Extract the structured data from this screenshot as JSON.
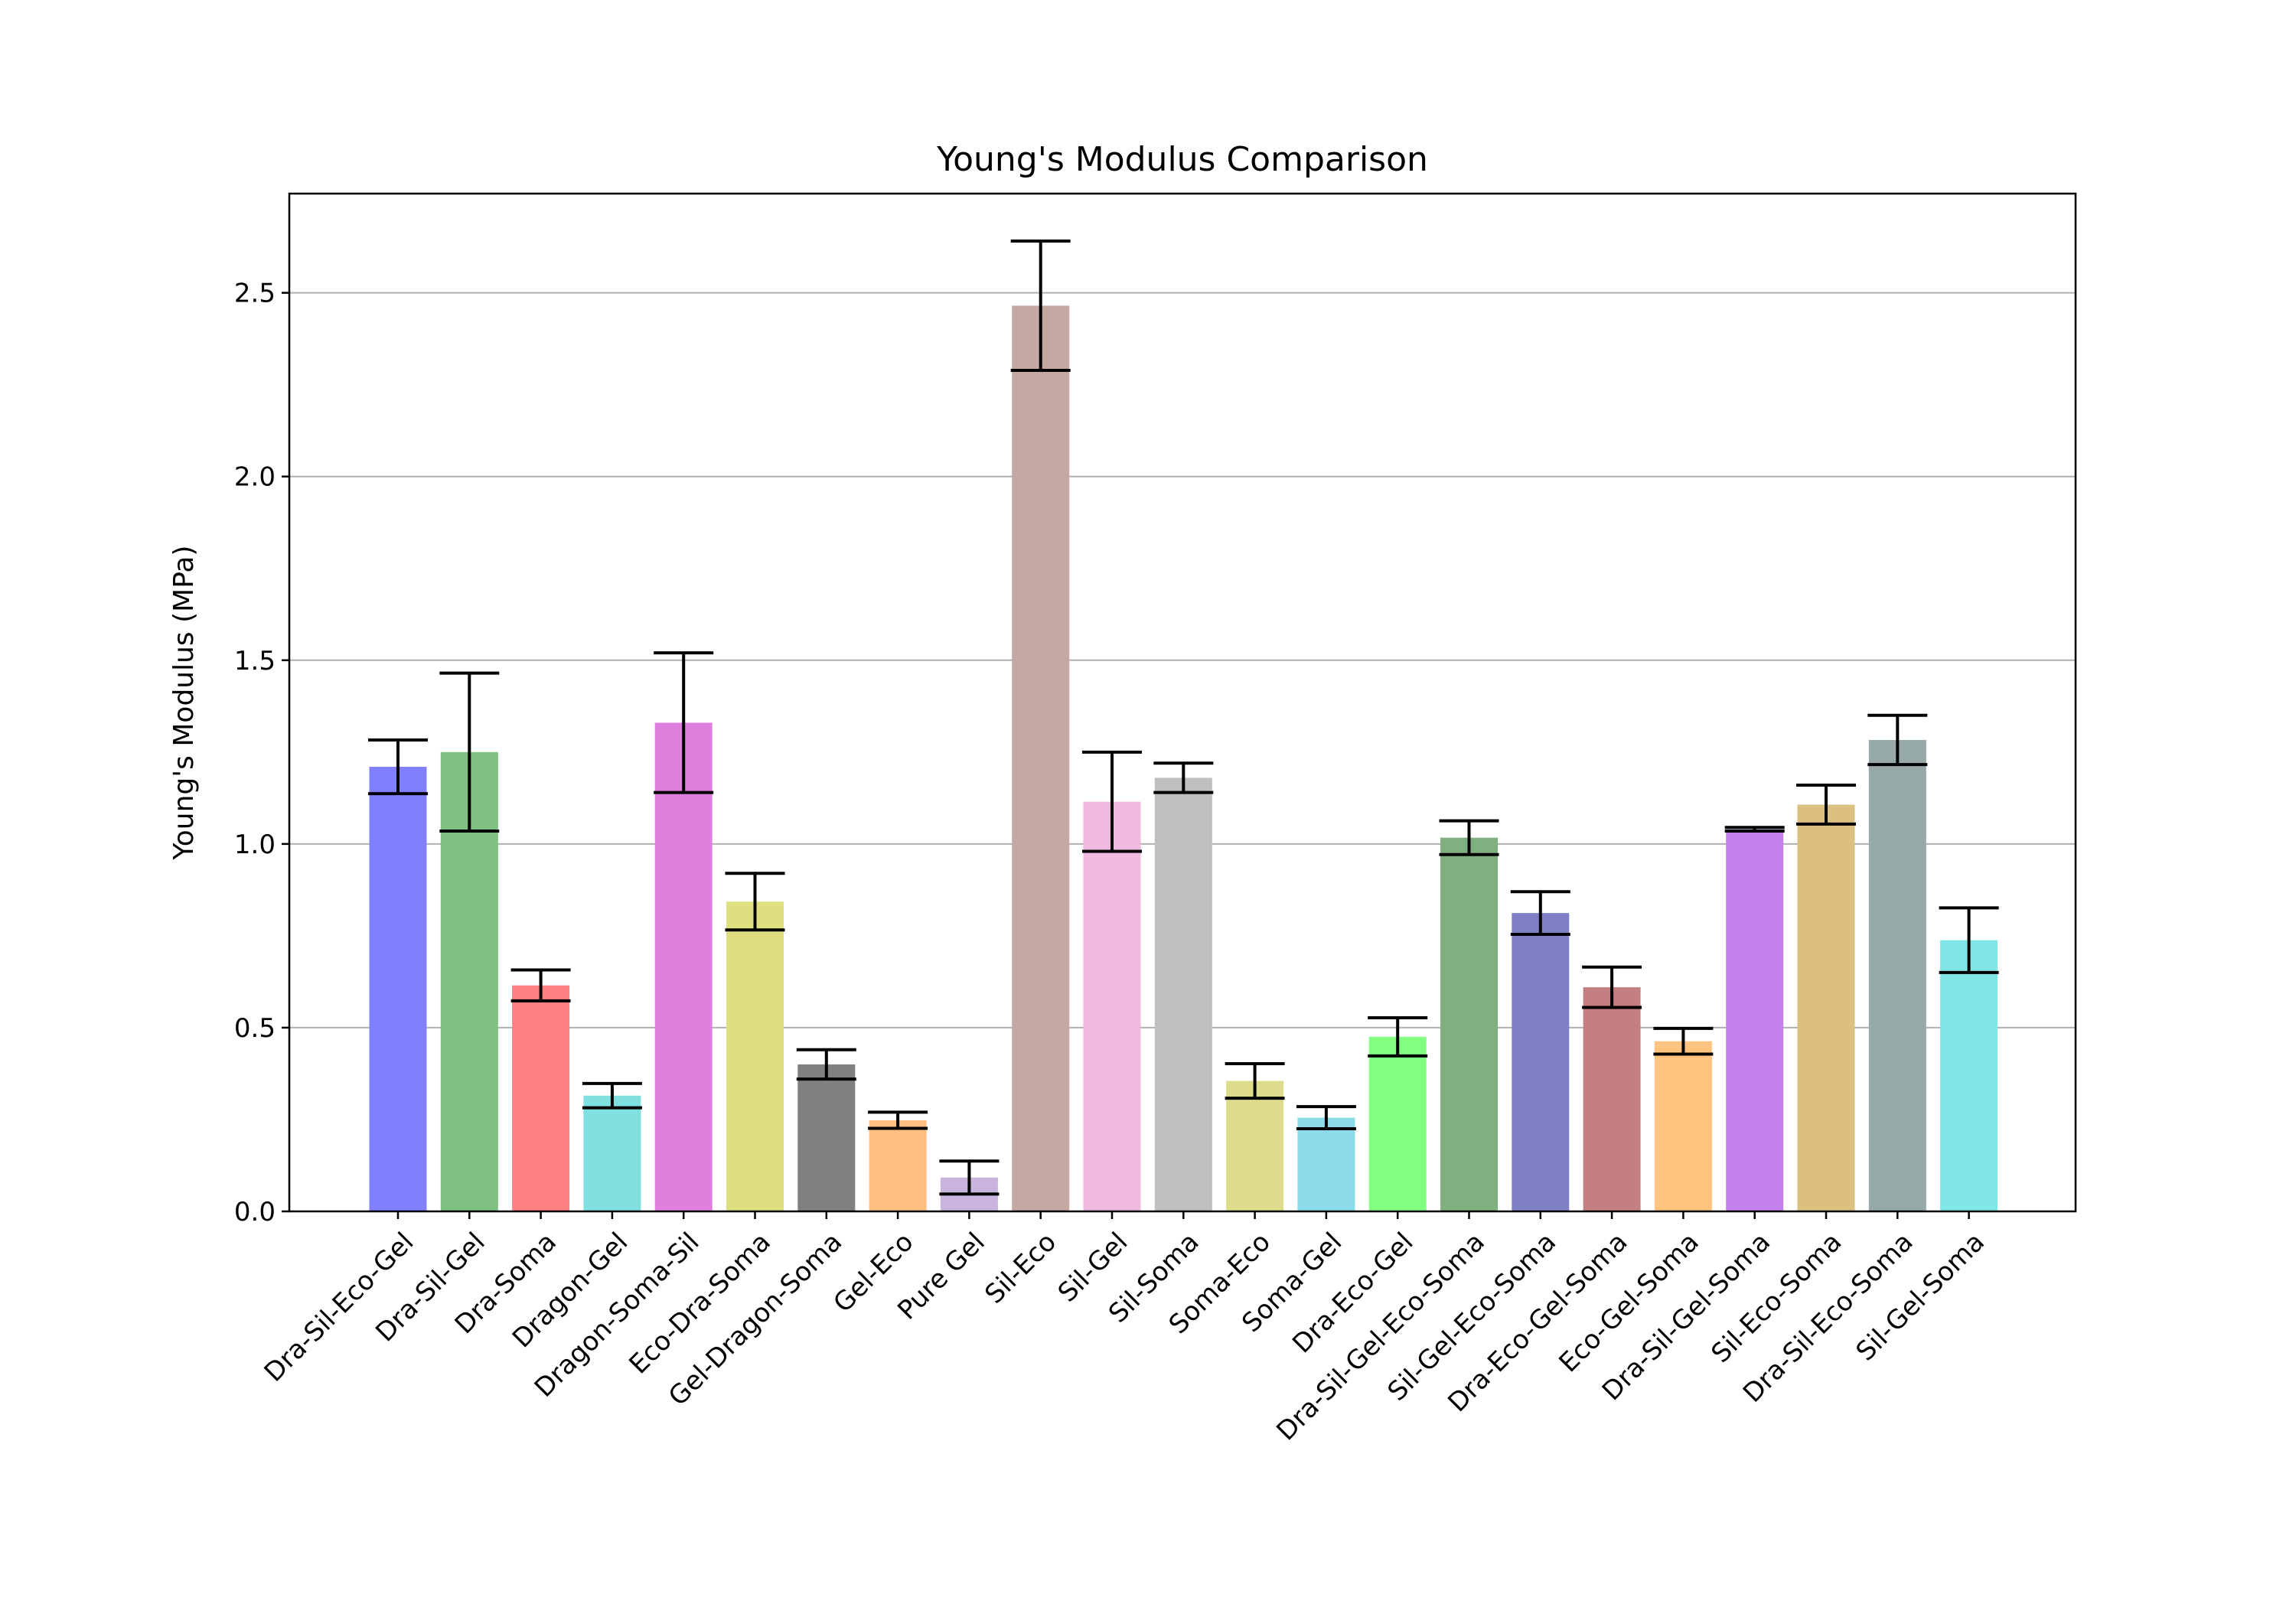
{
  "chart_data": {
    "type": "bar",
    "title": "Young's Modulus Comparison",
    "xlabel": "",
    "ylabel": "Young's Modulus (MPa)",
    "ylim": [
      0,
      2.77
    ],
    "yticks": [
      0.0,
      0.5,
      1.0,
      1.5,
      2.0,
      2.5
    ],
    "ytick_labels": [
      "0.0",
      "0.5",
      "1.0",
      "1.5",
      "2.0",
      "2.5"
    ],
    "grid": "horizontal",
    "categories": [
      "Dra-Sil-Eco-Gel",
      "Dra-Sil-Gel",
      "Dra-Soma",
      "Dragon-Gel",
      "Dragon-Soma-Sil",
      "Eco-Dra-Soma",
      "Gel-Dragon-Soma",
      "Gel-Eco",
      "Pure Gel",
      "Sil-Eco",
      "Sil-Gel",
      "Sil-Soma",
      "Soma-Eco",
      "Soma-Gel",
      "Dra-Eco-Gel",
      "Dra-Sil-Gel-Eco-Soma",
      "Sil-Gel-Eco-Soma",
      "Dra-Eco-Gel-Soma",
      "Eco-Gel-Soma",
      "Dra-Sil-Gel-Soma",
      "Sil-Eco-Soma",
      "Dra-Sil-Eco-Soma",
      "Sil-Gel-Soma"
    ],
    "values": [
      1.21,
      1.25,
      0.615,
      0.315,
      1.33,
      0.843,
      0.4,
      0.248,
      0.092,
      2.465,
      1.115,
      1.18,
      0.355,
      0.255,
      0.475,
      1.017,
      0.812,
      0.61,
      0.463,
      1.04,
      1.107,
      1.283,
      0.738
    ],
    "errors": [
      0.073,
      0.215,
      0.042,
      0.033,
      0.19,
      0.077,
      0.04,
      0.022,
      0.045,
      0.176,
      0.135,
      0.04,
      0.047,
      0.03,
      0.052,
      0.046,
      0.058,
      0.055,
      0.035,
      0.005,
      0.053,
      0.067,
      0.088
    ],
    "colors": [
      "#8080ff",
      "#80c080",
      "#ff8080",
      "#80dfdf",
      "#df80df",
      "#dfdf80",
      "#808080",
      "#ffbf80",
      "#c9b4de",
      "#c4a9a3",
      "#f0b9e0",
      "#bfbfbf",
      "#dcdc8a",
      "#8bdce8",
      "#80ff80",
      "#80b080",
      "#8080c4",
      "#c48080",
      "#ffc480",
      "#c480ea",
      "#dcc080",
      "#97a8a8",
      "#80e6e6"
    ]
  }
}
